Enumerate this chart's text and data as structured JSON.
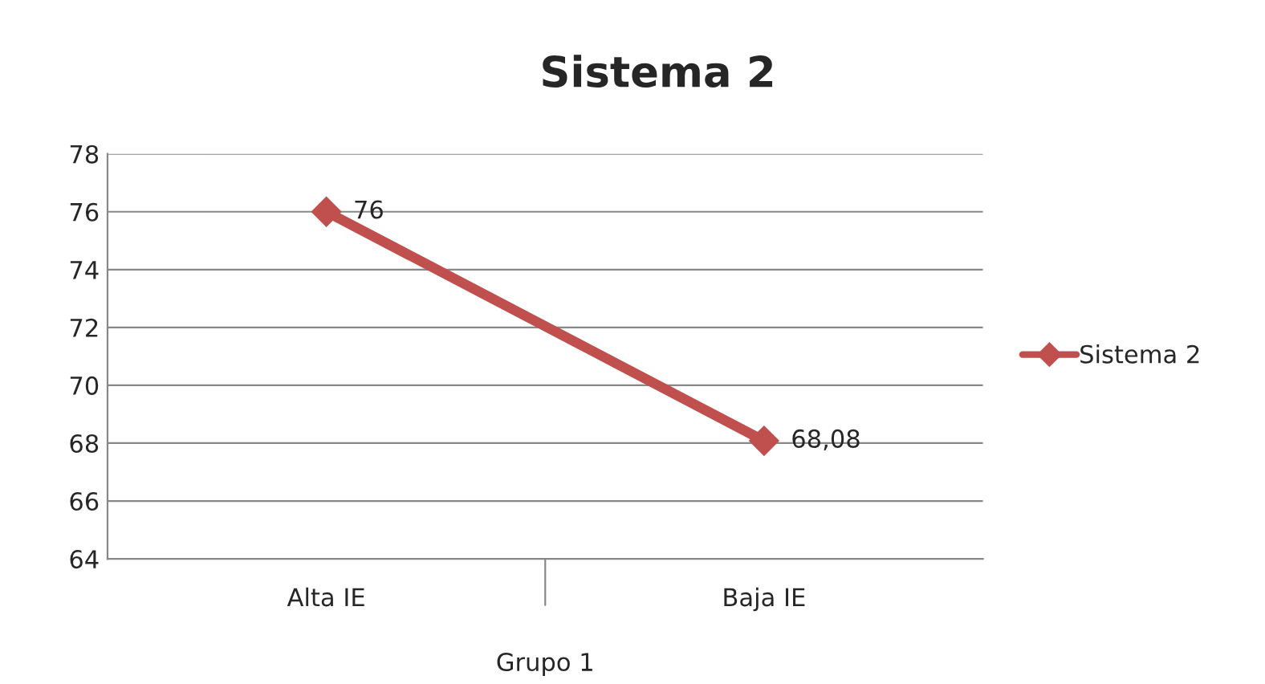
{
  "chart_data": {
    "type": "line",
    "title": "Sistema 2",
    "xlabel": "Grupo 1",
    "categories": [
      "Alta IE",
      "Baja IE"
    ],
    "series": [
      {
        "name": "Sistema 2",
        "color": "#c0504d",
        "values": [
          76,
          68.08
        ],
        "value_labels": [
          "76",
          "68,08"
        ]
      }
    ],
    "ylim": [
      64,
      78
    ],
    "yticks": [
      64,
      66,
      68,
      70,
      72,
      74,
      76,
      78
    ],
    "grid": "y",
    "legend": "right",
    "marker": "diamond",
    "line_style": "solid"
  }
}
